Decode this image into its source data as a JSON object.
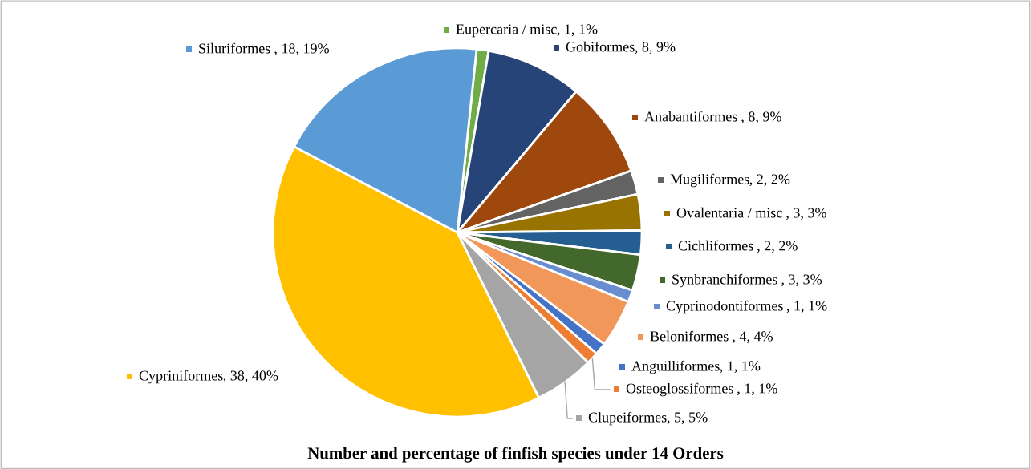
{
  "chart_data": {
    "type": "pie",
    "title": "Number and percentage of finfish species under 14 Orders",
    "categories": [
      "Eupercaria / misc",
      "Gobiformes",
      "Anabantiformes ",
      "Mugiliformes",
      "Ovalentaria / misc ",
      "Cichliformes ",
      "Synbranchiformes ",
      "Cyprinodontiformes ",
      "Beloniformes ",
      "Anguilliformes",
      "Osteoglossiformes ",
      "Clupeiformes",
      "Cypriniformes",
      "Siluriformes "
    ],
    "values": [
      1,
      8,
      8,
      2,
      3,
      2,
      3,
      1,
      4,
      1,
      1,
      5,
      38,
      18
    ],
    "value_labels": [
      ", 1, 1%",
      ", 8, 9%",
      ", 8, 9%",
      ", 2, 2%",
      ", 3, 3%",
      ", 2, 2%",
      ", 3, 3%",
      ", 1, 1%",
      ", 4, 4%",
      ", 1, 1%",
      ", 1, 1%",
      ", 5, 5%",
      ", 38, 40%",
      ", 18, 19%"
    ],
    "colors": [
      "#70ad47",
      "#264478",
      "#9e480e",
      "#636363",
      "#997300",
      "#255e91",
      "#43682b",
      "#698ed0",
      "#f1975a",
      "#4472c4",
      "#ed7d31",
      "#a5a5a5",
      "#ffc000",
      "#5b9bd5"
    ],
    "legend": "right"
  }
}
